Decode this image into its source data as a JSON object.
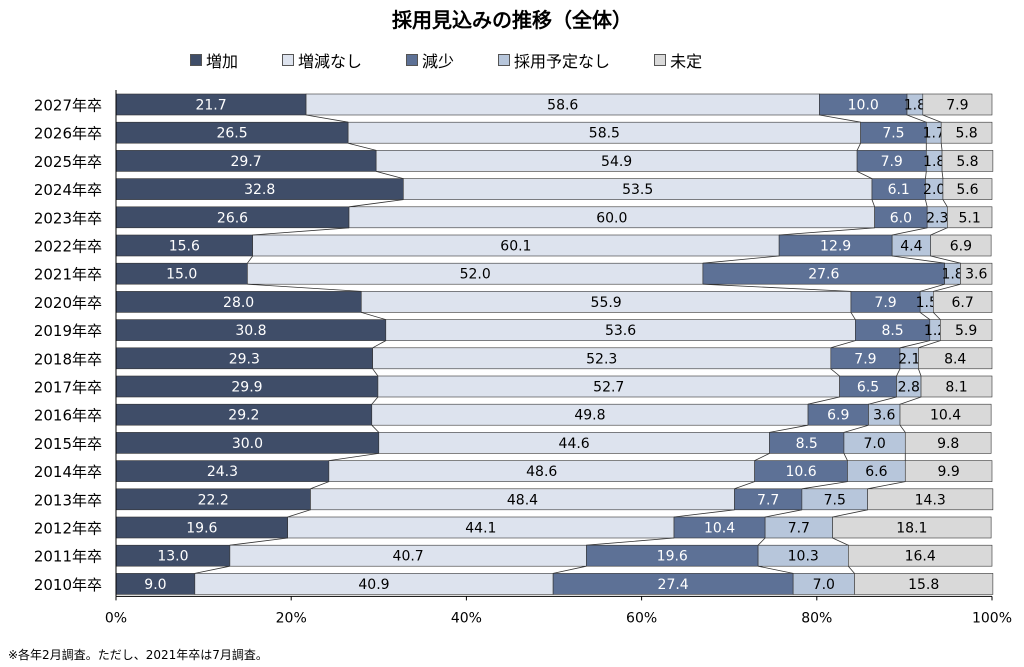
{
  "title": "採用見込みの推移（全体）",
  "footnote": "※各年2月調査。ただし、2021年卒は7月調査。",
  "chart_data": {
    "type": "bar",
    "orientation": "horizontal-stacked-100",
    "title": "採用見込みの推移（全体）",
    "categories": [
      "2027年卒",
      "2026年卒",
      "2025年卒",
      "2024年卒",
      "2023年卒",
      "2022年卒",
      "2021年卒",
      "2020年卒",
      "2019年卒",
      "2018年卒",
      "2017年卒",
      "2016年卒",
      "2015年卒",
      "2014年卒",
      "2013年卒",
      "2012年卒",
      "2011年卒",
      "2010年卒"
    ],
    "series": [
      {
        "name": "増加",
        "color": "#3f4d68",
        "values": [
          21.7,
          26.5,
          29.7,
          32.8,
          26.6,
          15.6,
          15.0,
          28.0,
          30.8,
          29.3,
          29.9,
          29.2,
          30.0,
          24.3,
          22.2,
          19.6,
          13.0,
          9.0
        ]
      },
      {
        "name": "増減なし",
        "color": "#dde3ee",
        "values": [
          58.6,
          58.5,
          54.9,
          53.5,
          60.0,
          60.1,
          52.0,
          55.9,
          53.6,
          52.3,
          52.7,
          49.8,
          44.6,
          48.6,
          48.4,
          44.1,
          40.7,
          40.9
        ]
      },
      {
        "name": "減少",
        "color": "#5d7196",
        "values": [
          10.0,
          7.5,
          7.9,
          6.1,
          6.0,
          12.9,
          27.6,
          7.9,
          8.5,
          7.9,
          6.5,
          6.9,
          8.5,
          10.6,
          7.7,
          10.4,
          19.6,
          27.4
        ]
      },
      {
        "name": "採用予定なし",
        "color": "#b7c6db",
        "values": [
          1.8,
          1.7,
          1.8,
          2.0,
          2.3,
          4.4,
          1.8,
          1.5,
          1.2,
          2.1,
          2.8,
          3.6,
          7.0,
          6.6,
          7.5,
          7.7,
          10.3,
          7.0
        ]
      },
      {
        "name": "未定",
        "color": "#d9d9d9",
        "values": [
          7.9,
          5.8,
          5.8,
          5.6,
          5.1,
          6.9,
          3.6,
          6.7,
          5.9,
          8.4,
          8.1,
          10.4,
          9.8,
          9.9,
          14.3,
          18.1,
          16.4,
          15.8
        ]
      }
    ],
    "xlim": [
      0,
      100
    ],
    "x_ticks": [
      "0%",
      "20%",
      "40%",
      "60%",
      "80%",
      "100%"
    ],
    "legend_position": "top",
    "connector_lines": true
  }
}
